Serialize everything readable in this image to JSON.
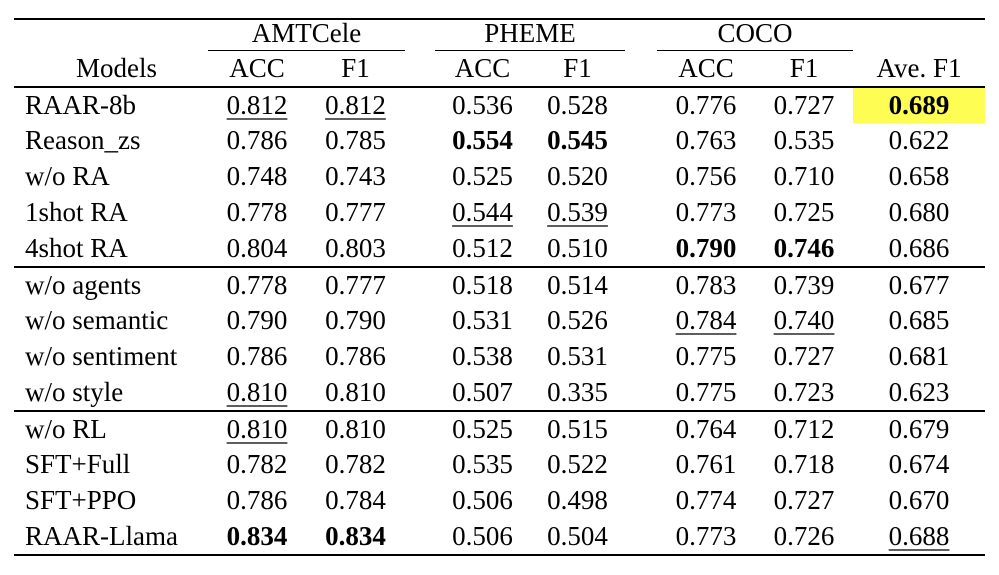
{
  "page": {
    "background": "#ffffff"
  },
  "colors": {
    "highlight_yellow": "#fdfd54",
    "rule_black": "#000000",
    "underline_gray": "#5e5e5e"
  },
  "table": {
    "models_header": "Models",
    "groups": [
      {
        "label": "AMTCele"
      },
      {
        "label": "PHEME"
      },
      {
        "label": "COCO"
      }
    ],
    "metric_headers": {
      "acc": "ACC",
      "f1": "F1"
    },
    "ave_header": "Ave. F1",
    "sections": [
      {
        "rows": [
          {
            "model": "RAAR-8b",
            "cells": [
              {
                "t": "0.812",
                "u": true
              },
              {
                "t": "0.812",
                "u": true
              },
              {
                "t": "0.536"
              },
              {
                "t": "0.528"
              },
              {
                "t": "0.776"
              },
              {
                "t": "0.727"
              },
              {
                "t": "0.689",
                "b": true,
                "hl": true
              }
            ]
          },
          {
            "model": "Reason_zs",
            "cells": [
              {
                "t": "0.786"
              },
              {
                "t": "0.785"
              },
              {
                "t": "0.554",
                "b": true
              },
              {
                "t": "0.545",
                "b": true
              },
              {
                "t": "0.763"
              },
              {
                "t": "0.535"
              },
              {
                "t": "0.622"
              }
            ]
          },
          {
            "model": "w/o RA",
            "cells": [
              {
                "t": "0.748"
              },
              {
                "t": "0.743"
              },
              {
                "t": "0.525"
              },
              {
                "t": "0.520"
              },
              {
                "t": "0.756"
              },
              {
                "t": "0.710"
              },
              {
                "t": "0.658"
              }
            ]
          },
          {
            "model": "1shot RA",
            "cells": [
              {
                "t": "0.778"
              },
              {
                "t": "0.777"
              },
              {
                "t": "0.544",
                "u": true
              },
              {
                "t": "0.539",
                "u": true
              },
              {
                "t": "0.773"
              },
              {
                "t": "0.725"
              },
              {
                "t": "0.680"
              }
            ]
          },
          {
            "model": "4shot RA",
            "cells": [
              {
                "t": "0.804"
              },
              {
                "t": "0.803"
              },
              {
                "t": "0.512"
              },
              {
                "t": "0.510"
              },
              {
                "t": "0.790",
                "b": true
              },
              {
                "t": "0.746",
                "b": true
              },
              {
                "t": "0.686"
              }
            ]
          }
        ]
      },
      {
        "rows": [
          {
            "model": "w/o agents",
            "cells": [
              {
                "t": "0.778"
              },
              {
                "t": "0.777"
              },
              {
                "t": "0.518"
              },
              {
                "t": "0.514"
              },
              {
                "t": "0.783"
              },
              {
                "t": "0.739"
              },
              {
                "t": "0.677"
              }
            ]
          },
          {
            "model": "w/o semantic",
            "cells": [
              {
                "t": "0.790"
              },
              {
                "t": "0.790"
              },
              {
                "t": "0.531"
              },
              {
                "t": "0.526"
              },
              {
                "t": "0.784",
                "u": true
              },
              {
                "t": "0.740",
                "u": true
              },
              {
                "t": "0.685"
              }
            ]
          },
          {
            "model": "w/o sentiment",
            "cells": [
              {
                "t": "0.786"
              },
              {
                "t": "0.786"
              },
              {
                "t": "0.538"
              },
              {
                "t": "0.531"
              },
              {
                "t": "0.775"
              },
              {
                "t": "0.727"
              },
              {
                "t": "0.681"
              }
            ]
          },
          {
            "model": "w/o style",
            "cells": [
              {
                "t": "0.810",
                "u": true
              },
              {
                "t": "0.810"
              },
              {
                "t": "0.507"
              },
              {
                "t": "0.335"
              },
              {
                "t": "0.775"
              },
              {
                "t": "0.723"
              },
              {
                "t": "0.623"
              }
            ]
          }
        ]
      },
      {
        "rows": [
          {
            "model": "w/o RL",
            "cells": [
              {
                "t": "0.810",
                "u": true
              },
              {
                "t": "0.810"
              },
              {
                "t": "0.525"
              },
              {
                "t": "0.515"
              },
              {
                "t": "0.764"
              },
              {
                "t": "0.712"
              },
              {
                "t": "0.679"
              }
            ]
          },
          {
            "model": "SFT+Full",
            "cells": [
              {
                "t": "0.782"
              },
              {
                "t": "0.782"
              },
              {
                "t": "0.535"
              },
              {
                "t": "0.522"
              },
              {
                "t": "0.761"
              },
              {
                "t": "0.718"
              },
              {
                "t": "0.674"
              }
            ]
          },
          {
            "model": "SFT+PPO",
            "cells": [
              {
                "t": "0.786"
              },
              {
                "t": "0.784"
              },
              {
                "t": "0.506"
              },
              {
                "t": "0.498"
              },
              {
                "t": "0.774"
              },
              {
                "t": "0.727"
              },
              {
                "t": "0.670"
              }
            ]
          },
          {
            "model": "RAAR-Llama",
            "cells": [
              {
                "t": "0.834",
                "b": true
              },
              {
                "t": "0.834",
                "b": true
              },
              {
                "t": "0.506"
              },
              {
                "t": "0.504"
              },
              {
                "t": "0.773"
              },
              {
                "t": "0.726"
              },
              {
                "t": "0.688",
                "u": true
              }
            ]
          }
        ]
      }
    ]
  },
  "chart_data": {
    "type": "table",
    "title": "",
    "column_groups": [
      "AMTCele",
      "PHEME",
      "COCO"
    ],
    "columns": [
      "Models",
      "AMTCele ACC",
      "AMTCele F1",
      "PHEME ACC",
      "PHEME F1",
      "COCO ACC",
      "COCO F1",
      "Ave. F1"
    ],
    "rows": [
      [
        "RAAR-8b",
        0.812,
        0.812,
        0.536,
        0.528,
        0.776,
        0.727,
        0.689
      ],
      [
        "Reason_zs",
        0.786,
        0.785,
        0.554,
        0.545,
        0.763,
        0.535,
        0.622
      ],
      [
        "w/o RA",
        0.748,
        0.743,
        0.525,
        0.52,
        0.756,
        0.71,
        0.658
      ],
      [
        "1shot RA",
        0.778,
        0.777,
        0.544,
        0.539,
        0.773,
        0.725,
        0.68
      ],
      [
        "4shot RA",
        0.804,
        0.803,
        0.512,
        0.51,
        0.79,
        0.746,
        0.686
      ],
      [
        "w/o agents",
        0.778,
        0.777,
        0.518,
        0.514,
        0.783,
        0.739,
        0.677
      ],
      [
        "w/o semantic",
        0.79,
        0.79,
        0.531,
        0.526,
        0.784,
        0.74,
        0.685
      ],
      [
        "w/o sentiment",
        0.786,
        0.786,
        0.538,
        0.531,
        0.775,
        0.727,
        0.681
      ],
      [
        "w/o style",
        0.81,
        0.81,
        0.507,
        0.335,
        0.775,
        0.723,
        0.623
      ],
      [
        "w/o RL",
        0.81,
        0.81,
        0.525,
        0.515,
        0.764,
        0.712,
        0.679
      ],
      [
        "SFT+Full",
        0.782,
        0.782,
        0.535,
        0.522,
        0.761,
        0.718,
        0.674
      ],
      [
        "SFT+PPO",
        0.786,
        0.784,
        0.506,
        0.498,
        0.774,
        0.727,
        0.67
      ],
      [
        "RAAR-Llama",
        0.834,
        0.834,
        0.506,
        0.504,
        0.773,
        0.726,
        0.688
      ]
    ],
    "notes": "bold = best in column group; underline = second best; yellow highlight on RAAR-8b Ave. F1"
  }
}
